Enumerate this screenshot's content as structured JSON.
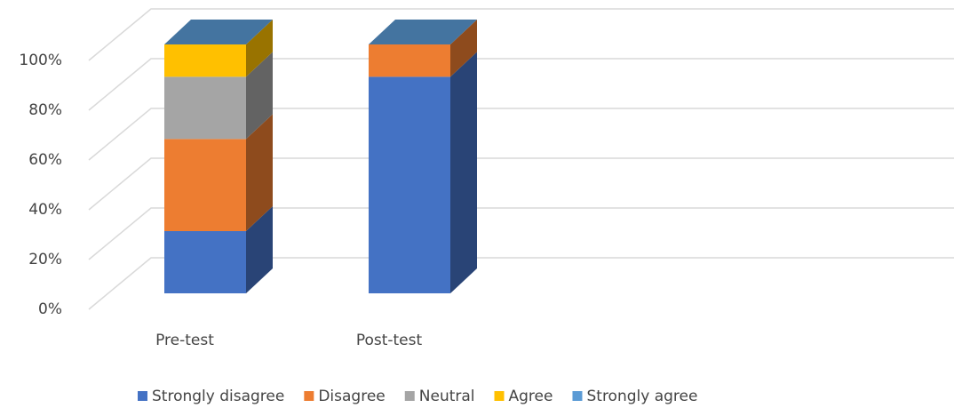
{
  "chart_data": {
    "type": "bar3d_stacked",
    "categories": [
      "Pre-test",
      "Post-test"
    ],
    "series": [
      {
        "name": "Strongly disagree",
        "color": "#4472c4",
        "values": [
          25,
          87
        ]
      },
      {
        "name": "Disagree",
        "color": "#ed7d31",
        "values": [
          37,
          13
        ]
      },
      {
        "name": "Neutral",
        "color": "#a5a5a5",
        "values": [
          25,
          0
        ]
      },
      {
        "name": "Agree",
        "color": "#ffc000",
        "values": [
          13,
          0
        ]
      },
      {
        "name": "Strongly agree",
        "color": "#5b9bd5",
        "values": [
          0,
          0
        ]
      }
    ],
    "ylim": [
      0,
      100
    ],
    "yticks": [
      {
        "value": 0,
        "label": "0%"
      },
      {
        "value": 20,
        "label": "20%"
      },
      {
        "value": 40,
        "label": "40%"
      },
      {
        "value": 60,
        "label": "60%"
      },
      {
        "value": 80,
        "label": "80%"
      },
      {
        "value": 100,
        "label": "100%"
      }
    ],
    "grid": true,
    "legend": "bottom"
  }
}
